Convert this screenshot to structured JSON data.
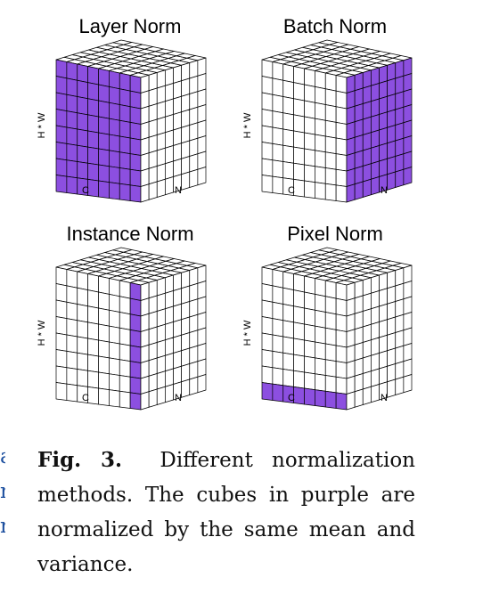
{
  "figure": {
    "colors": {
      "highlight": "#8c4fe0",
      "grid_line": "#000000",
      "cell_fill": "#ffffff"
    },
    "panels": [
      {
        "id": "layer-norm",
        "title": "Layer Norm",
        "highlight": "layer",
        "axis_labels": {
          "vertical": "H * W",
          "left": "C",
          "right": "N"
        }
      },
      {
        "id": "batch-norm",
        "title": "Batch Norm",
        "highlight": "batch",
        "axis_labels": {
          "vertical": "H * W",
          "left": "C",
          "right": "N"
        }
      },
      {
        "id": "instance-norm",
        "title": "Instance Norm",
        "highlight": "instance",
        "axis_labels": {
          "vertical": "H * W",
          "left": "C",
          "right": "N"
        }
      },
      {
        "id": "pixel-norm",
        "title": "Pixel Norm",
        "highlight": "pixel",
        "axis_labels": {
          "vertical": "H * W",
          "left": "C",
          "right": "N"
        }
      }
    ]
  },
  "caption": {
    "label": "Fig. 3.",
    "text": "Different normalization methods. The cubes in purple are normalized by the same mean and variance."
  }
}
